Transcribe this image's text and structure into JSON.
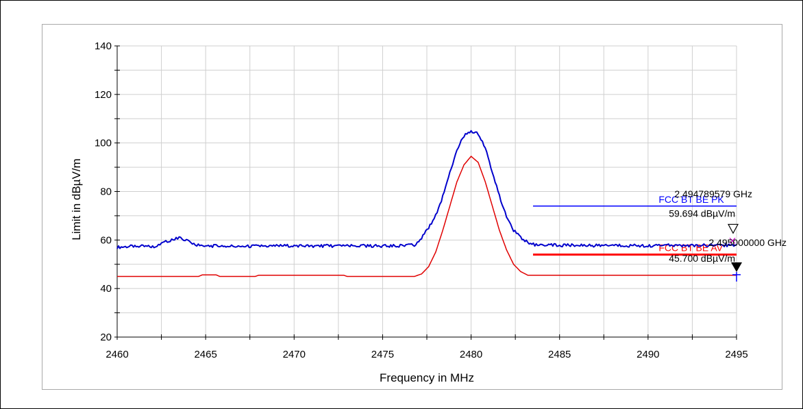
{
  "chart_data": {
    "type": "line",
    "xlabel": "Frequency in MHz",
    "ylabel": "Limit in dBµV/m",
    "xlim": [
      2460,
      2495
    ],
    "ylim": [
      20,
      140
    ],
    "xticks": [
      2460,
      2465,
      2470,
      2475,
      2480,
      2485,
      2490,
      2495
    ],
    "yticks": [
      20,
      40,
      60,
      80,
      100,
      120,
      140
    ],
    "grid": true,
    "colors": {
      "pk": "#0000cc",
      "av": "#e00000",
      "pk_limit": "#0000ff",
      "av_limit": "#ff0000"
    },
    "series": [
      {
        "key": "pk",
        "x": [
          2460,
          2461,
          2462,
          2462.5,
          2463,
          2463.5,
          2464,
          2464.5,
          2465,
          2466,
          2467,
          2468,
          2469,
          2470,
          2471,
          2472,
          2473,
          2474,
          2475,
          2476,
          2476.8,
          2477.2,
          2477.6,
          2478,
          2478.4,
          2478.8,
          2479.2,
          2479.6,
          2480,
          2480.4,
          2480.8,
          2481.2,
          2481.6,
          2482,
          2482.4,
          2482.8,
          2483.2,
          2483.6,
          2484,
          2485,
          2486,
          2487,
          2488,
          2489,
          2490,
          2491,
          2492,
          2493,
          2494,
          2495
        ],
        "y": [
          57,
          57.5,
          57.2,
          58.5,
          60,
          60.8,
          59.5,
          58,
          57.5,
          57.6,
          57.3,
          57.5,
          57.6,
          57.7,
          57.5,
          57.6,
          57.5,
          57.6,
          57.5,
          57.6,
          58,
          61,
          65,
          70,
          78,
          88,
          97,
          103,
          105,
          104,
          98,
          88,
          78,
          70,
          64,
          61,
          59,
          58,
          58.2,
          57.8,
          57.9,
          57.7,
          57.8,
          57.7,
          57.6,
          57.8,
          57.7,
          57.9,
          57.8,
          58
        ]
      },
      {
        "key": "av",
        "x": [
          2460,
          2464.6,
          2464.8,
          2465.6,
          2465.8,
          2467.8,
          2468,
          2472.8,
          2473,
          2476.8,
          2477.2,
          2477.6,
          2478,
          2478.4,
          2478.8,
          2479.2,
          2479.6,
          2480,
          2480.4,
          2480.8,
          2481.2,
          2481.6,
          2482,
          2482.4,
          2482.8,
          2483.2,
          2495
        ],
        "y": [
          45,
          45,
          45.6,
          45.6,
          45,
          45,
          45.5,
          45.5,
          45,
          45,
          46,
          49,
          55,
          64,
          74,
          84,
          91,
          94.5,
          92,
          84,
          74,
          64,
          56,
          50,
          47,
          45.5,
          45.5
        ]
      }
    ],
    "limits": [
      {
        "key": "pk_limit",
        "name": "FCC BT BE PK",
        "y": 74,
        "x_start": 2483.5,
        "x_end": 2495
      },
      {
        "key": "av_limit",
        "name": "FCC BT BE AV",
        "y": 54,
        "x_start": 2483.5,
        "x_end": 2495
      }
    ],
    "markers": [
      {
        "x": 2495,
        "y": 59.694,
        "label_freq": "2.494789579 GHz",
        "label_level": "59.694 dBµV/m",
        "style": "open"
      },
      {
        "x": 2495,
        "y": 45.7,
        "label_freq": "2.495000000 GHz",
        "label_level": "45.700 dBµV/m",
        "style": "filled"
      }
    ]
  }
}
